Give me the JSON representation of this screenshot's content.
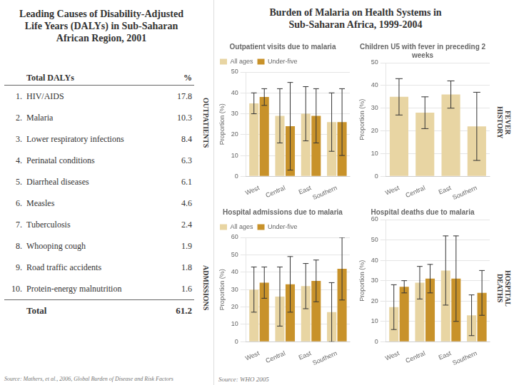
{
  "chart_data": [
    {
      "type": "table",
      "title": "Leading Causes of Disability-Adjusted\nLife Years (DALYs) in Sub-Saharan\nAfrican Region, 2001",
      "columns": [
        "Total DALYs",
        "%"
      ],
      "ranks": [
        "1.",
        "2.",
        "3.",
        "4.",
        "5.",
        "6.",
        "7.",
        "8.",
        "9.",
        "10."
      ],
      "categories": [
        "HIV/AIDS",
        "Malaria",
        "Lower respiratory infections",
        "Perinatal conditions",
        "Diarrheal diseases",
        "Measles",
        "Tuberculosis",
        "Whooping cough",
        "Road traffic accidents",
        "Protein-energy malnutrition"
      ],
      "values": [
        17.8,
        10.3,
        8.4,
        6.3,
        6.1,
        4.6,
        2.4,
        1.9,
        1.8,
        1.6
      ],
      "total_label": "Total",
      "total": 61.2,
      "source": "Source: Mathers, et al., 2006, Global Burden of Disease and Risk Factors",
      "annotations": [
        "OUTPATIENTS",
        "ADMISSIONS"
      ]
    },
    {
      "type": "panel",
      "title": "Burden of Malaria on Health Systems in\nSub-Saharan Africa, 1999-2004",
      "source": "Source: WHO 2005",
      "annotations": [
        "FEVER\nHISTORY",
        "HOSPITAL",
        "DEATHS"
      ],
      "charts": [
        {
          "type": "bar",
          "title": "Outpatient visits due to malaria",
          "categories": [
            "West",
            "Central",
            "East",
            "Southern"
          ],
          "series": [
            {
              "name": "All ages",
              "color": "#e8d5a3",
              "values": [
                35,
                29,
                30,
                26
              ],
              "errors": [
                5,
                13,
                13,
                14
              ]
            },
            {
              "name": "Under-five",
              "color": "#c8922a",
              "values": [
                38,
                24,
                29,
                26
              ],
              "errors": [
                4,
                21,
                13,
                16
              ]
            }
          ],
          "ylabel": "Proportion (%)",
          "ylim": [
            0,
            50
          ],
          "yticks": [
            0,
            10,
            20,
            30,
            40,
            50
          ],
          "grid": true,
          "legend": "upper left"
        },
        {
          "type": "bar",
          "title": "Children U5 with fever in preceding 2 weeks",
          "categories": [
            "West",
            "Central",
            "East",
            "Southern"
          ],
          "series": [
            {
              "name": "All ages",
              "color": "#e8d5a3",
              "values": [
                35,
                28,
                36,
                22
              ],
              "errors": [
                8,
                7,
                6,
                15
              ]
            }
          ],
          "ylabel": "Proportion (%)",
          "ylim": [
            0,
            50
          ],
          "yticks": [
            0,
            10,
            20,
            30,
            40,
            50
          ],
          "grid": true
        },
        {
          "type": "bar",
          "title": "Hospital admissions due to malaria",
          "categories": [
            "West",
            "Central",
            "East",
            "Southern"
          ],
          "series": [
            {
              "name": "All ages",
              "color": "#e8d5a3",
              "values": [
                30,
                26,
                32,
                17
              ],
              "errors": [
                13,
                17,
                13,
                17
              ]
            },
            {
              "name": "Under-five",
              "color": "#c8922a",
              "values": [
                34,
                33,
                35,
                42
              ],
              "errors": [
                9,
                16,
                12,
                18
              ]
            }
          ],
          "ylabel": "Proportion (%)",
          "ylim": [
            0,
            60
          ],
          "yticks": [
            0,
            10,
            20,
            30,
            40,
            50,
            60
          ],
          "grid": true,
          "legend": "upper left"
        },
        {
          "type": "bar",
          "title": "Hospital deaths due to malaria",
          "categories": [
            "West",
            "Central",
            "East",
            "Southern"
          ],
          "series": [
            {
              "name": "All ages",
              "color": "#e8d5a3",
              "values": [
                17,
                29,
                35,
                13
              ],
              "errors": [
                11,
                8,
                17,
                10
              ]
            },
            {
              "name": "Under-five",
              "color": "#c8922a",
              "values": [
                27,
                31,
                31,
                24
              ],
              "errors": [
                3,
                7,
                21,
                11
              ]
            }
          ],
          "ylabel": "Proportion (%)",
          "ylim": [
            0,
            60
          ],
          "yticks": [
            0,
            10,
            20,
            30,
            40,
            50,
            60
          ],
          "grid": true
        }
      ]
    }
  ]
}
